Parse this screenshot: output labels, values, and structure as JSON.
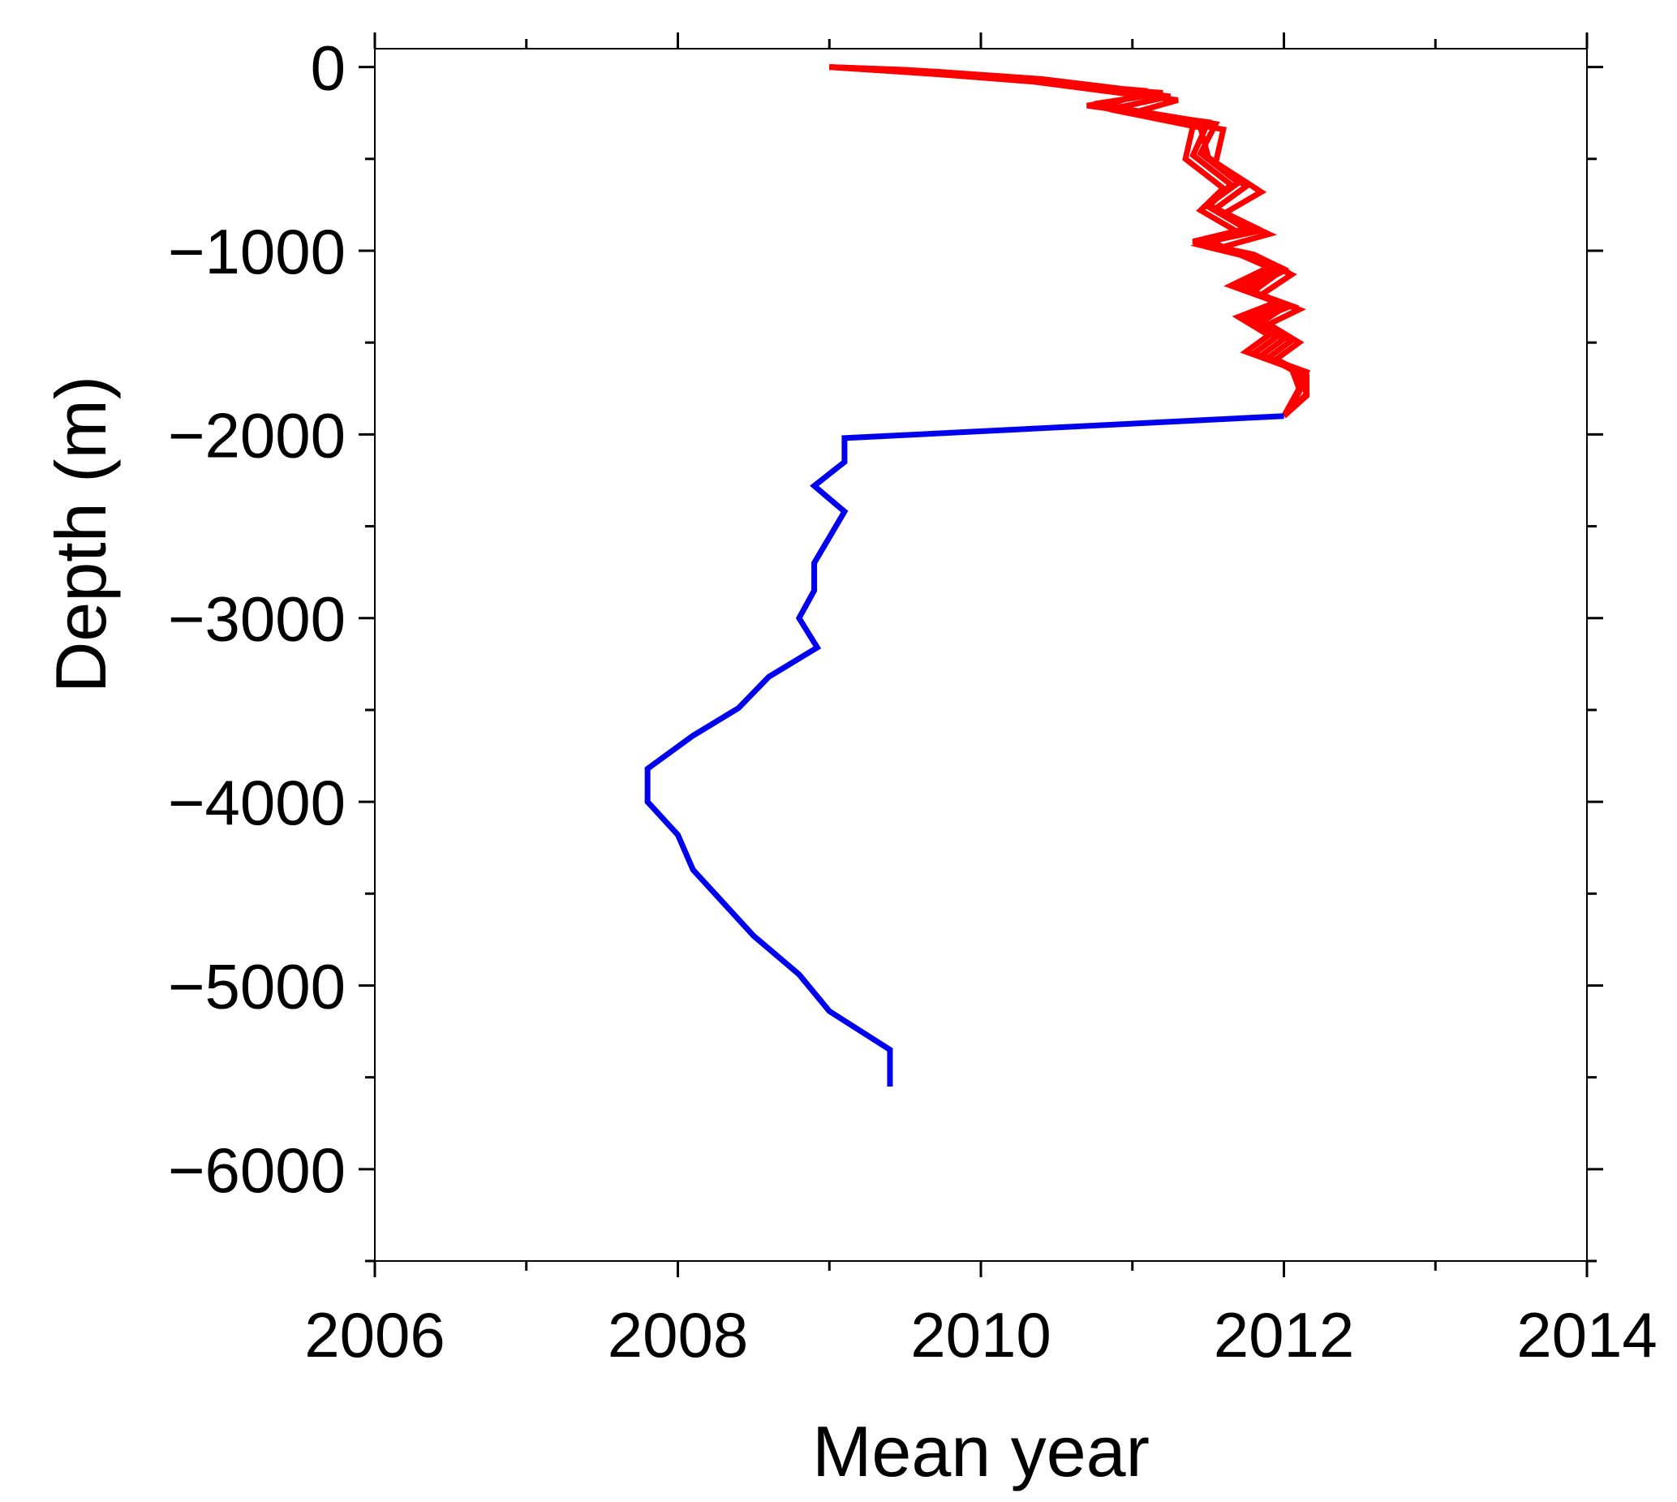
{
  "chart_data": {
    "type": "line",
    "title": "",
    "xlabel": "Mean year",
    "ylabel": "Depth (m)",
    "xlim": [
      2006,
      2014
    ],
    "ylim": [
      -6500,
      100
    ],
    "xticks": [
      2006,
      2008,
      2010,
      2012,
      2014
    ],
    "yticks": [
      0,
      -1000,
      -2000,
      -3000,
      -4000,
      -5000,
      -6000
    ],
    "xtick_labels": [
      "2006",
      "2008",
      "2010",
      "2012",
      "2014"
    ],
    "ytick_labels": [
      "0",
      "−1000",
      "−2000",
      "−3000",
      "−4000",
      "−5000",
      "−6000"
    ],
    "grid": false,
    "legend": "none",
    "colors": {
      "upper": "#ff0000",
      "deep": "#0000ee",
      "axis": "#000000"
    },
    "series": [
      {
        "color": "#ff0000",
        "x": [
          2009.0,
          2009.6,
          2010.3,
          2010.85,
          2011.2,
          2010.7,
          2011.5,
          2011.4,
          2011.65,
          2011.5,
          2011.75,
          2011.4,
          2011.7,
          2011.95,
          2011.7,
          2012.0,
          2011.75,
          2011.95,
          2011.8,
          2012.1,
          2012.1,
          2012.0
        ],
        "y": [
          0,
          -20,
          -60,
          -120,
          -140,
          -210,
          -300,
          -480,
          -640,
          -760,
          -880,
          -950,
          -1010,
          -1100,
          -1200,
          -1290,
          -1370,
          -1470,
          -1560,
          -1650,
          -1760,
          -1900
        ]
      },
      {
        "color": "#ff0000",
        "x": [
          2009.0,
          2009.5,
          2010.2,
          2010.8,
          2011.1,
          2010.8,
          2011.4,
          2011.35,
          2011.6,
          2011.45,
          2011.7,
          2011.45,
          2011.75,
          2012.0,
          2011.75,
          2012.05,
          2011.8,
          2012.0,
          2011.85,
          2012.15,
          2012.1,
          2012.0
        ],
        "y": [
          0,
          -15,
          -55,
          -110,
          -130,
          -220,
          -320,
          -500,
          -660,
          -780,
          -900,
          -970,
          -1030,
          -1110,
          -1210,
          -1300,
          -1380,
          -1480,
          -1570,
          -1660,
          -1770,
          -1900
        ]
      },
      {
        "color": "#ff0000",
        "x": [
          2009.0,
          2009.7,
          2010.4,
          2010.9,
          2011.15,
          2010.75,
          2011.55,
          2011.45,
          2011.7,
          2011.5,
          2011.8,
          2011.5,
          2011.65,
          2011.9,
          2011.65,
          2011.95,
          2011.7,
          2011.9,
          2011.75,
          2012.05,
          2012.1,
          2012.0
        ],
        "y": [
          0,
          -25,
          -65,
          -115,
          -150,
          -200,
          -310,
          -470,
          -630,
          -750,
          -870,
          -940,
          -1000,
          -1090,
          -1190,
          -1280,
          -1360,
          -1460,
          -1550,
          -1640,
          -1750,
          -1900
        ]
      },
      {
        "color": "#ff0000",
        "x": [
          2009.0,
          2009.55,
          2010.25,
          2010.95,
          2011.25,
          2010.85,
          2011.45,
          2011.5,
          2011.75,
          2011.55,
          2011.85,
          2011.45,
          2011.8,
          2012.0,
          2011.8,
          2012.0,
          2011.85,
          2012.05,
          2011.9,
          2012.1,
          2012.15,
          2012.0
        ],
        "y": [
          0,
          -30,
          -70,
          -130,
          -160,
          -230,
          -330,
          -490,
          -650,
          -770,
          -890,
          -960,
          -1020,
          -1100,
          -1220,
          -1310,
          -1390,
          -1490,
          -1580,
          -1670,
          -1780,
          -1900
        ]
      },
      {
        "color": "#ff0000",
        "x": [
          2009.0,
          2009.65,
          2010.35,
          2011.0,
          2011.3,
          2011.0,
          2011.6,
          2011.55,
          2011.85,
          2011.6,
          2011.9,
          2011.55,
          2011.85,
          2012.05,
          2011.85,
          2012.1,
          2011.9,
          2012.1,
          2011.95,
          2012.15,
          2012.15,
          2012.0
        ],
        "y": [
          0,
          -35,
          -80,
          -150,
          -180,
          -250,
          -340,
          -520,
          -680,
          -800,
          -910,
          -990,
          -1050,
          -1130,
          -1240,
          -1320,
          -1400,
          -1500,
          -1590,
          -1680,
          -1790,
          -1900
        ]
      },
      {
        "color": "#0000ee",
        "x": [
          2012.0,
          2009.1,
          2009.1,
          2008.9,
          2009.1,
          2008.9,
          2008.9,
          2008.8,
          2008.92,
          2008.6,
          2008.4,
          2008.1,
          2007.8,
          2007.8,
          2008.0,
          2008.1,
          2008.5,
          2008.8,
          2009.0,
          2009.4,
          2009.4
        ],
        "y": [
          -1900,
          -2020,
          -2150,
          -2280,
          -2420,
          -2700,
          -2850,
          -3000,
          -3160,
          -3320,
          -3490,
          -3640,
          -3820,
          -4000,
          -4180,
          -4370,
          -4730,
          -4940,
          -5140,
          -5350,
          -5550
        ]
      }
    ]
  }
}
